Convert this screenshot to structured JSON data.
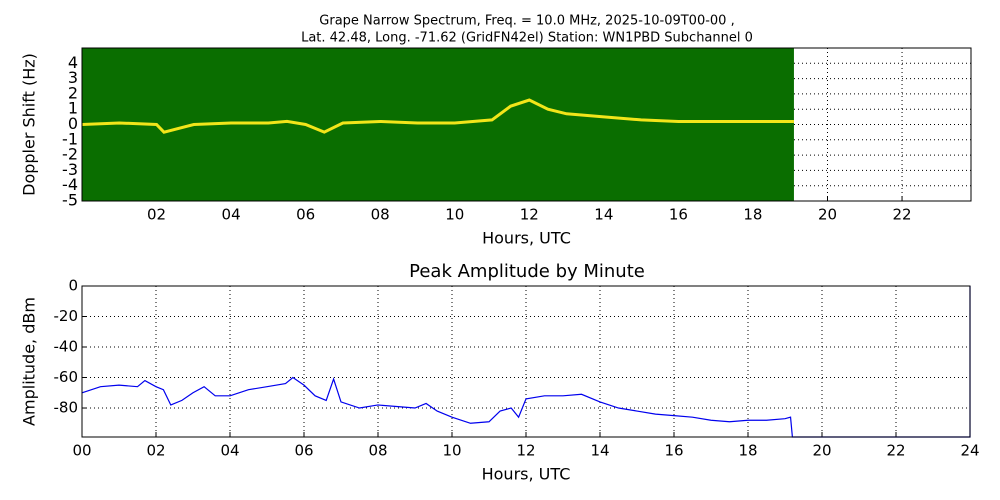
{
  "chart_data": [
    {
      "type": "spectrogram",
      "title": [
        "Grape Narrow Spectrum, Freq. = 10.0 MHz, 2025-10-09T00-00 ,",
        "Lat.  42.48, Long. -71.62 (GridFN42el) Station: WN1PBD Subchannel 0"
      ],
      "x_label": "Hours, UTC",
      "y_label": "Doppler Shift (Hz)",
      "xlim": [
        0,
        23.85
      ],
      "ylim": [
        -5,
        5
      ],
      "xticks": [
        {
          "value": 2,
          "label": "02"
        },
        {
          "value": 4,
          "label": "04"
        },
        {
          "value": 6,
          "label": "06"
        },
        {
          "value": 8,
          "label": "08"
        },
        {
          "value": 10,
          "label": "10"
        },
        {
          "value": 12,
          "label": "12"
        },
        {
          "value": 14,
          "label": "14"
        },
        {
          "value": 16,
          "label": "16"
        },
        {
          "value": 18,
          "label": "18"
        },
        {
          "value": 20,
          "label": "20"
        },
        {
          "value": 22,
          "label": "22"
        }
      ],
      "yticks": [
        -5,
        -4,
        -3,
        -2,
        -1,
        0,
        1,
        2,
        3,
        4
      ],
      "grid": true,
      "background_color": "#0a6e00",
      "color": "#f2e51a",
      "x": [
        0,
        1,
        2,
        2.2,
        3,
        4,
        5,
        5.5,
        6,
        6.5,
        7,
        8,
        9,
        10,
        11,
        11.5,
        12,
        12.5,
        13,
        14,
        15,
        16,
        17,
        18,
        19.1
      ],
      "values": [
        0,
        0.1,
        0,
        -0.5,
        0,
        0.1,
        0.1,
        0.2,
        0,
        -0.5,
        0.1,
        0.2,
        0.1,
        0.1,
        0.3,
        1.2,
        1.6,
        1.0,
        0.7,
        0.5,
        0.3,
        0.2,
        0.2,
        0.2,
        0.2
      ]
    },
    {
      "type": "line",
      "title": "Peak Amplitude by Minute",
      "x_label": "Hours, UTC",
      "y_label": "Amplitude, dBm",
      "xlim": [
        0,
        24
      ],
      "ylim": [
        -99,
        0
      ],
      "xticks": [
        {
          "value": 0,
          "label": "00"
        },
        {
          "value": 2,
          "label": "02"
        },
        {
          "value": 4,
          "label": "04"
        },
        {
          "value": 6,
          "label": "06"
        },
        {
          "value": 8,
          "label": "08"
        },
        {
          "value": 10,
          "label": "10"
        },
        {
          "value": 12,
          "label": "12"
        },
        {
          "value": 14,
          "label": "14"
        },
        {
          "value": 16,
          "label": "16"
        },
        {
          "value": 18,
          "label": "18"
        },
        {
          "value": 20,
          "label": "20"
        },
        {
          "value": 22,
          "label": "22"
        },
        {
          "value": 24,
          "label": "24"
        }
      ],
      "yticks": [
        -80,
        -60,
        -40,
        -20,
        0
      ],
      "grid": true,
      "color": "#0000ee",
      "x": [
        0,
        0.5,
        1,
        1.5,
        1.7,
        2,
        2.2,
        2.4,
        2.7,
        3,
        3.3,
        3.6,
        4,
        4.5,
        5,
        5.5,
        5.7,
        6,
        6.3,
        6.6,
        6.8,
        7,
        7.5,
        8,
        8.5,
        9,
        9.3,
        9.6,
        10,
        10.5,
        11,
        11.3,
        11.6,
        11.8,
        12,
        12.5,
        13,
        13.5,
        14,
        14.5,
        15,
        15.5,
        16,
        16.5,
        17,
        17.5,
        18,
        18.5,
        19,
        19.15,
        19.2,
        24,
        24
      ],
      "values": [
        -70,
        -66,
        -65,
        -66,
        -62,
        -66,
        -68,
        -78,
        -75,
        -70,
        -66,
        -72,
        -72,
        -68,
        -66,
        -64,
        -60,
        -65,
        -72,
        -75,
        -61,
        -76,
        -80,
        -78,
        -79,
        -80,
        -77,
        -82,
        -86,
        -90,
        -89,
        -82,
        -80,
        -86,
        -74,
        -72,
        -72,
        -71,
        -76,
        -80,
        -82,
        -84,
        -85,
        -86,
        -88,
        -89,
        -88,
        -88,
        -87,
        -86,
        -99,
        -99,
        0
      ]
    }
  ]
}
